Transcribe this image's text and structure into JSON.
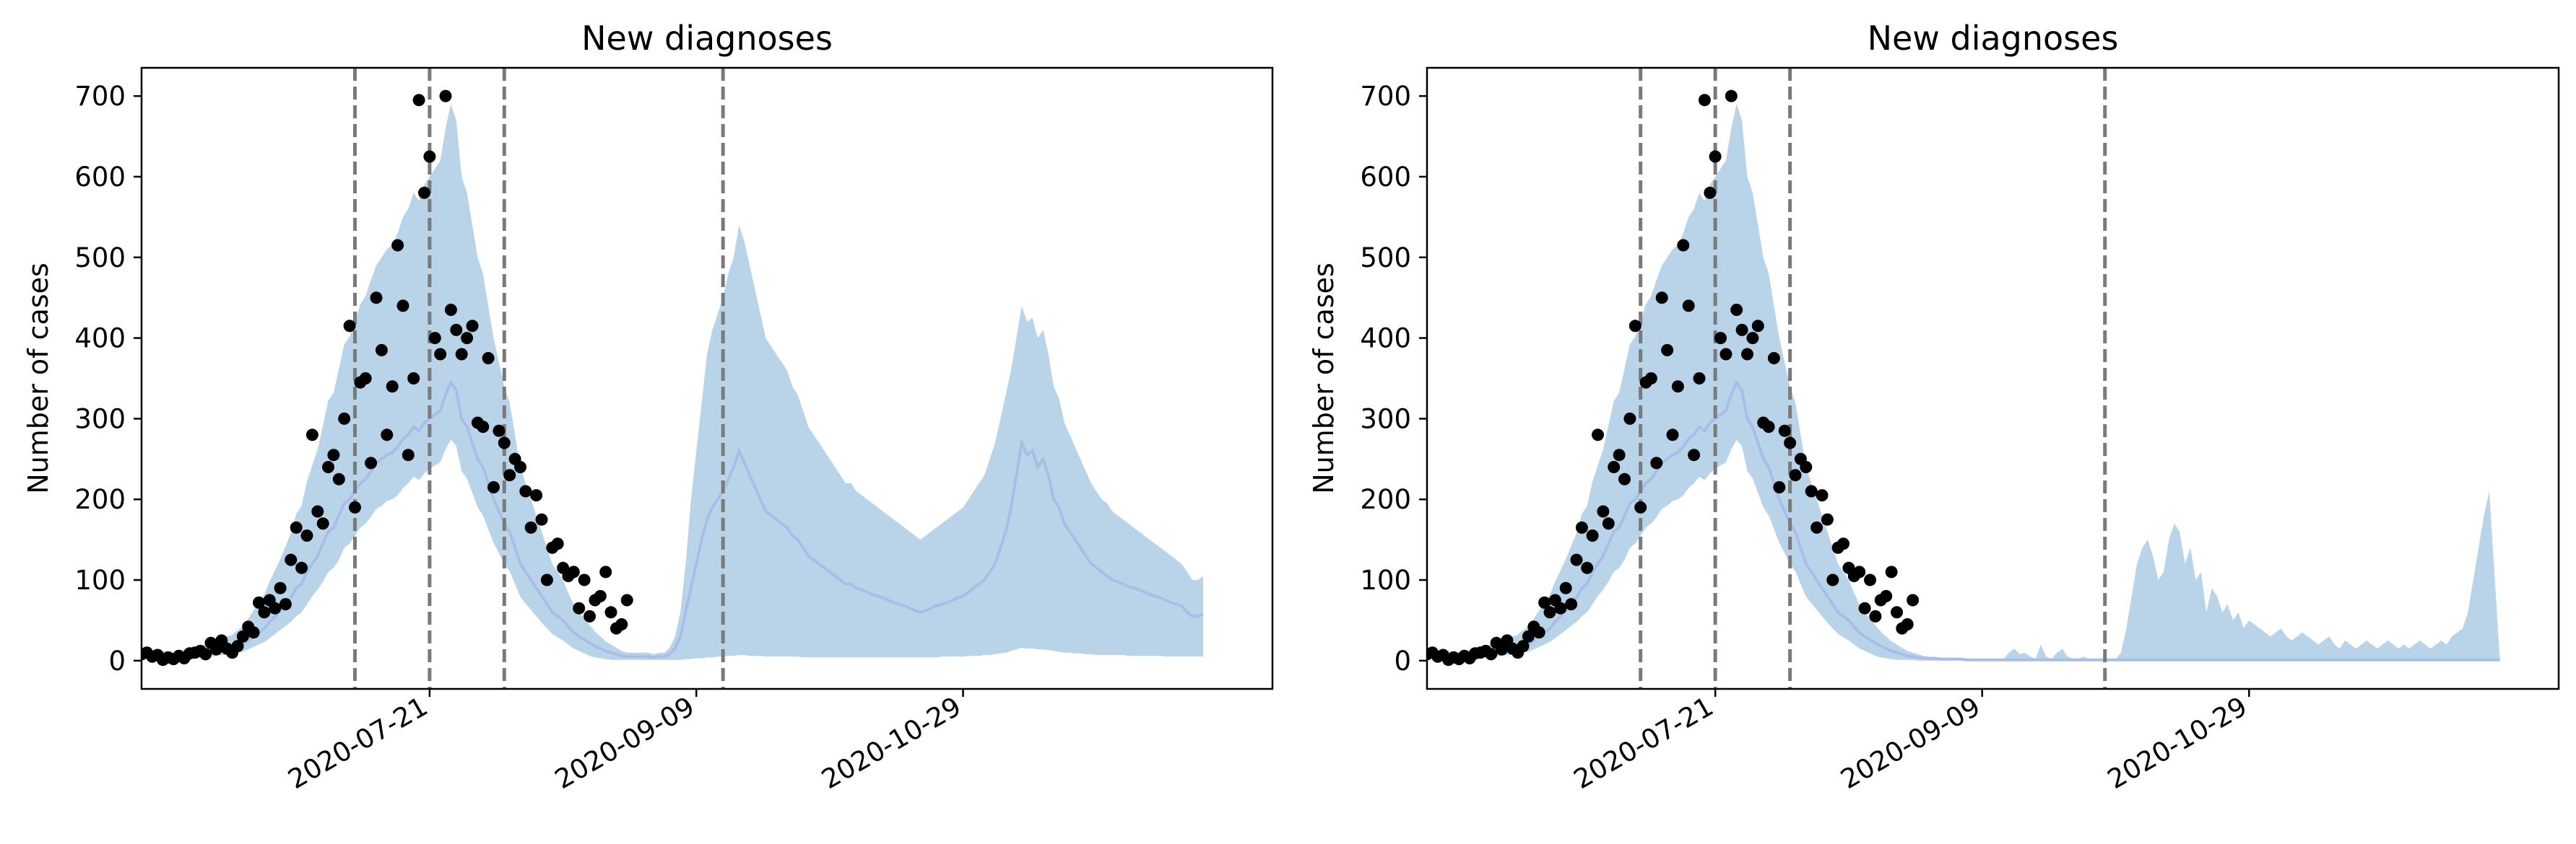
{
  "chart_data": [
    {
      "type": "scatter",
      "title": "New diagnoses",
      "xlabel": "",
      "ylabel": "Number of cases",
      "ylim": [
        -35,
        735
      ],
      "xlim": [
        "2020-05-28",
        "2020-12-26"
      ],
      "x_tick_labels": [
        "2020-07-21",
        "2020-09-09",
        "2020-10-29"
      ],
      "y_ticks": [
        0,
        100,
        200,
        300,
        400,
        500,
        600,
        700
      ],
      "vlines": [
        "2020-07-07",
        "2020-07-21",
        "2020-08-04",
        "2020-09-14"
      ],
      "observed_start": "2020-05-28",
      "observed": [
        8,
        10,
        5,
        7,
        1,
        4,
        2,
        6,
        3,
        9,
        10,
        12,
        8,
        22,
        14,
        25,
        15,
        10,
        18,
        30,
        42,
        35,
        72,
        60,
        75,
        65,
        90,
        70,
        125,
        165,
        115,
        155,
        280,
        185,
        170,
        240,
        255,
        225,
        300,
        415,
        190,
        345,
        350,
        245,
        450,
        385,
        280,
        340,
        515,
        440,
        255,
        350,
        695,
        580,
        625,
        400,
        380,
        700,
        435,
        410,
        380,
        400,
        415,
        295,
        290,
        375,
        215,
        285,
        270,
        230,
        250,
        240,
        210,
        165,
        205,
        175,
        100,
        140,
        145,
        115,
        105,
        110,
        65,
        100,
        55,
        75,
        80,
        110,
        60,
        40,
        45,
        75
      ],
      "median_start": "2020-05-28",
      "median": [
        5,
        5,
        5,
        4,
        5,
        4,
        3,
        5,
        5,
        6,
        7,
        8,
        9,
        10,
        12,
        13,
        14,
        15,
        18,
        20,
        25,
        30,
        35,
        40,
        48,
        55,
        62,
        70,
        78,
        90,
        95,
        110,
        120,
        130,
        145,
        160,
        165,
        180,
        195,
        200,
        210,
        220,
        225,
        235,
        245,
        250,
        255,
        258,
        265,
        275,
        280,
        290,
        285,
        295,
        300,
        305,
        310,
        330,
        345,
        335,
        300,
        290,
        270,
        250,
        240,
        220,
        200,
        185,
        170,
        160,
        140,
        120,
        110,
        100,
        90,
        80,
        70,
        60,
        55,
        50,
        42,
        35,
        30,
        26,
        22,
        18,
        15,
        12,
        10,
        8,
        6,
        5,
        5,
        5,
        5,
        5,
        4,
        5,
        5,
        8,
        15,
        30,
        60,
        90,
        120,
        150,
        175,
        190,
        200,
        210,
        225,
        240,
        260,
        245,
        230,
        215,
        200,
        185,
        180,
        175,
        170,
        165,
        155,
        150,
        140,
        130,
        125,
        120,
        115,
        110,
        105,
        100,
        95,
        95,
        90,
        88,
        85,
        82,
        80,
        78,
        75,
        72,
        70,
        68,
        65,
        62,
        60,
        62,
        65,
        68,
        70,
        72,
        75,
        78,
        80,
        85,
        90,
        95,
        100,
        110,
        120,
        140,
        160,
        190,
        230,
        270,
        255,
        260,
        240,
        250,
        230,
        200,
        190,
        170,
        160,
        150,
        140,
        130,
        120,
        115,
        110,
        105,
        100,
        98,
        95,
        92,
        90,
        88,
        85,
        82,
        80,
        78,
        75,
        72,
        70,
        68,
        60,
        55,
        55,
        58
      ],
      "band_low": [
        2,
        2,
        2,
        1,
        2,
        1,
        1,
        2,
        2,
        3,
        3,
        4,
        4,
        5,
        6,
        7,
        7,
        8,
        10,
        11,
        14,
        17,
        20,
        23,
        28,
        33,
        38,
        43,
        48,
        55,
        60,
        70,
        80,
        88,
        98,
        110,
        115,
        125,
        140,
        145,
        155,
        165,
        170,
        178,
        188,
        192,
        198,
        200,
        205,
        214,
        220,
        228,
        224,
        232,
        238,
        242,
        246,
        262,
        274,
        266,
        235,
        226,
        208,
        190,
        180,
        163,
        146,
        133,
        120,
        111,
        95,
        79,
        71,
        63,
        55,
        47,
        40,
        33,
        29,
        25,
        20,
        15,
        12,
        9,
        6,
        4,
        3,
        2,
        1,
        1,
        1,
        1,
        1,
        1,
        1,
        1,
        1,
        1,
        1,
        1,
        1,
        1,
        2,
        2,
        3,
        3,
        4,
        4,
        5,
        5,
        6,
        6,
        7,
        7,
        6,
        6,
        6,
        5,
        5,
        5,
        5,
        5,
        5,
        5,
        4,
        4,
        4,
        4,
        4,
        4,
        4,
        4,
        4,
        4,
        4,
        4,
        4,
        4,
        4,
        4,
        4,
        4,
        4,
        4,
        4,
        4,
        4,
        4,
        4,
        4,
        5,
        5,
        5,
        5,
        5,
        6,
        6,
        6,
        7,
        7,
        8,
        9,
        10,
        12,
        14,
        16,
        15,
        15,
        14,
        14,
        13,
        12,
        11,
        10,
        10,
        9,
        9,
        8,
        8,
        7,
        7,
        7,
        7,
        7,
        7,
        6,
        6,
        6,
        6,
        6,
        6,
        6,
        5,
        5,
        5,
        5,
        5,
        5,
        5,
        5
      ],
      "band_high": [
        12,
        12,
        12,
        10,
        12,
        10,
        8,
        12,
        12,
        14,
        16,
        18,
        20,
        22,
        26,
        28,
        30,
        32,
        38,
        42,
        52,
        62,
        72,
        82,
        98,
        112,
        126,
        142,
        158,
        182,
        192,
        222,
        242,
        262,
        292,
        322,
        332,
        362,
        392,
        402,
        422,
        442,
        452,
        472,
        490,
        500,
        510,
        516,
        530,
        550,
        560,
        580,
        570,
        590,
        600,
        610,
        620,
        660,
        690,
        670,
        600,
        580,
        540,
        500,
        480,
        440,
        400,
        370,
        340,
        320,
        280,
        240,
        220,
        200,
        180,
        160,
        140,
        120,
        110,
        100,
        84,
        70,
        60,
        52,
        44,
        36,
        30,
        24,
        20,
        16,
        12,
        10,
        10,
        10,
        10,
        10,
        8,
        10,
        10,
        16,
        30,
        60,
        120,
        200,
        260,
        320,
        380,
        410,
        430,
        450,
        480,
        500,
        540,
        520,
        490,
        460,
        430,
        400,
        390,
        380,
        370,
        360,
        340,
        330,
        310,
        290,
        280,
        270,
        260,
        250,
        240,
        230,
        220,
        220,
        210,
        205,
        200,
        195,
        190,
        185,
        180,
        175,
        170,
        165,
        160,
        155,
        150,
        155,
        160,
        165,
        170,
        175,
        180,
        185,
        190,
        200,
        210,
        220,
        230,
        250,
        270,
        300,
        330,
        360,
        400,
        440,
        420,
        425,
        400,
        410,
        380,
        340,
        325,
        295,
        280,
        265,
        250,
        235,
        220,
        210,
        200,
        195,
        185,
        180,
        175,
        170,
        165,
        160,
        155,
        150,
        145,
        140,
        135,
        130,
        125,
        120,
        110,
        100,
        100,
        105
      ]
    },
    {
      "type": "scatter",
      "title": "New diagnoses",
      "xlabel": "",
      "ylabel": "Number of cases",
      "ylim": [
        -35,
        735
      ],
      "xlim": [
        "2020-05-28",
        "2020-12-26"
      ],
      "x_tick_labels": [
        "2020-07-21",
        "2020-09-09",
        "2020-10-29"
      ],
      "y_ticks": [
        0,
        100,
        200,
        300,
        400,
        500,
        600,
        700
      ],
      "vlines": [
        "2020-07-07",
        "2020-07-21",
        "2020-08-04",
        "2020-10-02"
      ],
      "observed_start": "2020-05-28",
      "observed": [
        8,
        10,
        5,
        7,
        1,
        4,
        2,
        6,
        3,
        9,
        10,
        12,
        8,
        22,
        14,
        25,
        15,
        10,
        18,
        30,
        42,
        35,
        72,
        60,
        75,
        65,
        90,
        70,
        125,
        165,
        115,
        155,
        280,
        185,
        170,
        240,
        255,
        225,
        300,
        415,
        190,
        345,
        350,
        245,
        450,
        385,
        280,
        340,
        515,
        440,
        255,
        350,
        695,
        580,
        625,
        400,
        380,
        700,
        435,
        410,
        380,
        400,
        415,
        295,
        290,
        375,
        215,
        285,
        270,
        230,
        250,
        240,
        210,
        165,
        205,
        175,
        100,
        140,
        145,
        115,
        105,
        110,
        65,
        100,
        55,
        75,
        80,
        110,
        60,
        40,
        45,
        75
      ],
      "median_start": "2020-05-28",
      "median": [
        5,
        5,
        5,
        4,
        5,
        4,
        3,
        5,
        5,
        6,
        7,
        8,
        9,
        10,
        12,
        13,
        14,
        15,
        18,
        20,
        25,
        30,
        35,
        40,
        48,
        55,
        62,
        70,
        78,
        90,
        95,
        110,
        120,
        130,
        145,
        160,
        165,
        180,
        195,
        200,
        210,
        220,
        225,
        235,
        245,
        250,
        255,
        258,
        265,
        275,
        280,
        290,
        285,
        295,
        300,
        305,
        310,
        330,
        345,
        335,
        300,
        290,
        270,
        250,
        240,
        220,
        200,
        185,
        170,
        160,
        140,
        120,
        110,
        100,
        90,
        80,
        70,
        60,
        55,
        50,
        42,
        35,
        30,
        26,
        22,
        18,
        15,
        12,
        10,
        8,
        6,
        5,
        4,
        3,
        3,
        3,
        2,
        2,
        2,
        2,
        2,
        1,
        1,
        1,
        1,
        1,
        1,
        1,
        1,
        1,
        1,
        1,
        1,
        1,
        1,
        1,
        1,
        1,
        1,
        1,
        1,
        1,
        1,
        1,
        1,
        1,
        1,
        1,
        1,
        1,
        1,
        1,
        1,
        1,
        1,
        1,
        1,
        1,
        1,
        1,
        1,
        1,
        1,
        1,
        1,
        1,
        1,
        1,
        1,
        1,
        1,
        1,
        1,
        1,
        1,
        1,
        1,
        1,
        1,
        1,
        1,
        1,
        1,
        1,
        1,
        1,
        1,
        1,
        1,
        1,
        1,
        1,
        1,
        1,
        1,
        1,
        1,
        1,
        1,
        1,
        1,
        1,
        1,
        1,
        1,
        1,
        1,
        1,
        1,
        1,
        1,
        1,
        1,
        1,
        1,
        1,
        1,
        1,
        1,
        1,
        1,
        1
      ],
      "band_low": [
        2,
        2,
        2,
        1,
        2,
        1,
        1,
        2,
        2,
        3,
        3,
        4,
        4,
        5,
        6,
        7,
        7,
        8,
        10,
        11,
        14,
        17,
        20,
        23,
        28,
        33,
        38,
        43,
        48,
        55,
        60,
        70,
        80,
        88,
        98,
        110,
        115,
        125,
        140,
        145,
        155,
        165,
        170,
        178,
        188,
        192,
        198,
        200,
        205,
        214,
        220,
        228,
        224,
        232,
        238,
        242,
        246,
        262,
        274,
        266,
        235,
        226,
        208,
        190,
        180,
        163,
        146,
        133,
        120,
        111,
        95,
        79,
        71,
        63,
        55,
        47,
        40,
        33,
        29,
        25,
        20,
        15,
        12,
        9,
        6,
        4,
        3,
        2,
        1,
        1,
        1,
        1,
        0,
        0,
        0,
        0,
        0,
        0,
        0,
        0,
        0,
        0,
        0,
        0,
        0,
        0,
        0,
        0,
        0,
        0,
        0,
        0,
        0,
        0,
        0,
        0,
        0,
        0,
        0,
        0,
        0,
        0,
        0,
        0,
        0,
        0,
        0,
        0,
        0,
        0,
        0,
        0,
        0,
        0,
        0,
        0,
        0,
        0,
        0,
        0,
        0,
        0,
        0,
        0,
        0,
        0,
        0,
        0,
        0,
        0,
        0,
        0,
        0,
        0,
        0,
        0,
        0,
        0,
        0,
        0,
        0,
        0,
        0,
        0,
        0,
        0,
        0,
        0,
        0,
        0,
        0,
        0,
        0,
        0,
        0,
        0,
        0,
        0,
        0,
        0,
        0,
        0,
        0,
        0,
        0,
        0,
        0,
        0,
        0,
        0,
        0,
        0,
        0,
        0,
        0,
        0,
        0,
        0,
        0,
        0,
        0,
        0
      ],
      "band_high": [
        12,
        12,
        12,
        10,
        12,
        10,
        8,
        12,
        12,
        14,
        16,
        18,
        20,
        22,
        26,
        28,
        30,
        32,
        38,
        42,
        52,
        62,
        72,
        82,
        98,
        112,
        126,
        142,
        158,
        182,
        192,
        222,
        242,
        262,
        292,
        322,
        332,
        362,
        392,
        402,
        422,
        442,
        452,
        472,
        490,
        500,
        510,
        516,
        530,
        550,
        560,
        580,
        570,
        590,
        600,
        610,
        620,
        660,
        690,
        670,
        600,
        580,
        540,
        500,
        480,
        440,
        400,
        370,
        340,
        320,
        280,
        240,
        220,
        200,
        180,
        160,
        140,
        120,
        110,
        100,
        84,
        70,
        60,
        52,
        44,
        36,
        30,
        24,
        20,
        16,
        12,
        10,
        8,
        6,
        5,
        4,
        4,
        3,
        3,
        3,
        2,
        2,
        2,
        2,
        2,
        2,
        2,
        2,
        2,
        10,
        15,
        8,
        10,
        5,
        2,
        20,
        5,
        2,
        10,
        15,
        5,
        2,
        2,
        5,
        2,
        2,
        2,
        2,
        2,
        2,
        10,
        40,
        80,
        120,
        140,
        150,
        130,
        100,
        110,
        150,
        170,
        160,
        120,
        140,
        100,
        110,
        60,
        90,
        80,
        60,
        70,
        50,
        60,
        40,
        50,
        45,
        40,
        35,
        30,
        35,
        40,
        30,
        25,
        30,
        35,
        30,
        25,
        20,
        25,
        30,
        20,
        15,
        25,
        20,
        15,
        20,
        25,
        20,
        15,
        20,
        25,
        20,
        15,
        20,
        15,
        20,
        25,
        20,
        15,
        20,
        25,
        20,
        30,
        35,
        40,
        60,
        100,
        140,
        180,
        210
      ],
      "band_high_start_offset_note_ignored": ""
    }
  ]
}
